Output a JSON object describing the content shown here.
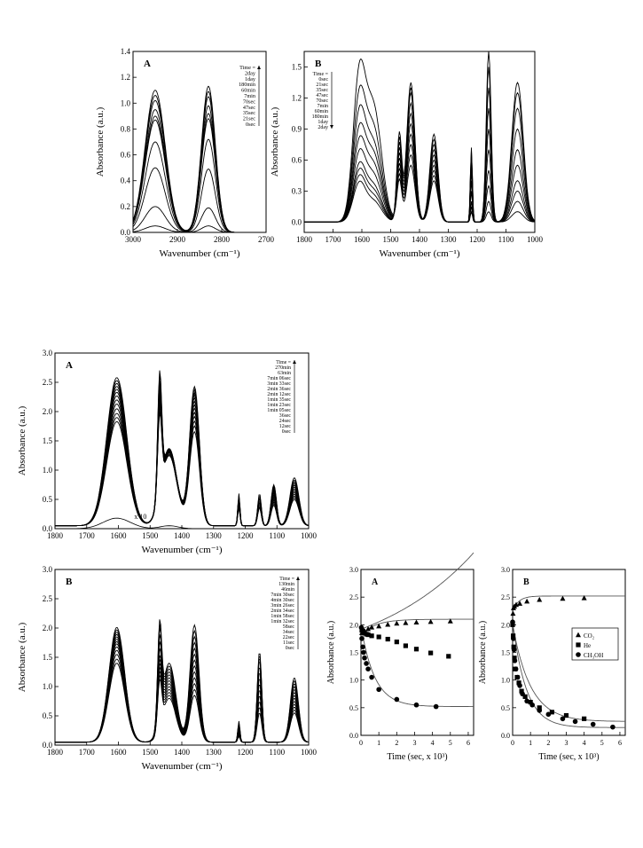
{
  "colors": {
    "ink": "#000000",
    "background": "#ffffff",
    "fit_line": "#555555"
  },
  "chart_data": [
    {
      "id": "fig1A",
      "type": "line",
      "panel_label": "A",
      "xlabel": "Wavenumber (cm⁻¹)",
      "ylabel": "Absorbance (a.u.)",
      "xlim": [
        3000,
        2700
      ],
      "xticks": [
        "3000",
        "2900",
        "2800",
        "2700"
      ],
      "ylim": [
        0.0,
        1.4
      ],
      "yticks": [
        "0.0",
        "0.2",
        "0.4",
        "0.6",
        "0.8",
        "1.0",
        "1.2",
        "1.4"
      ],
      "legend_title": "Time =",
      "legend_entries": [
        "2day",
        "1day",
        "180min",
        "60min",
        "7min",
        "70sec",
        "47sec",
        "35sec",
        "21sec",
        "0sec"
      ],
      "legend_arrow": "up",
      "legend_position": "top-right",
      "peaks": [
        {
          "x": 2950,
          "w": 32,
          "heights": [
            0.05,
            0.2,
            0.5,
            0.7,
            0.87,
            0.9,
            0.95,
            1.02,
            1.06,
            1.1
          ]
        },
        {
          "x": 2830,
          "w": 22,
          "heights": [
            0.05,
            0.19,
            0.49,
            0.72,
            0.88,
            0.92,
            0.98,
            1.05,
            1.09,
            1.13
          ]
        }
      ],
      "baseline": 0.0
    },
    {
      "id": "fig1B",
      "type": "line",
      "panel_label": "B",
      "xlabel": "Wavenumber (cm⁻¹)",
      "ylabel": "Absorbance (a.u.)",
      "xlim": [
        1800,
        1000
      ],
      "xticks": [
        "1800",
        "1700",
        "1600",
        "1500",
        "1400",
        "1300",
        "1200",
        "1100",
        "1000"
      ],
      "ylim": [
        -0.1,
        1.65
      ],
      "yticks": [
        "0.0",
        "0.3",
        "0.6",
        "0.9",
        "1.2",
        "1.5"
      ],
      "legend_title": "Time =",
      "legend_entries": [
        "0sec",
        "21sec",
        "35sec",
        "47sec",
        "70sec",
        "7min",
        "60min",
        "180min",
        "1day",
        "2day"
      ],
      "legend_arrow": "down",
      "legend_position": "top-left",
      "peaks": [
        {
          "x": 1610,
          "w": 30,
          "heights": [
            1.3,
            1.1,
            0.95,
            0.8,
            0.7,
            0.6,
            0.5,
            0.45,
            0.4,
            0.35
          ]
        },
        {
          "x": 1560,
          "w": 40,
          "heights": [
            1.1,
            0.9,
            0.75,
            0.65,
            0.55,
            0.45,
            0.35,
            0.3,
            0.25,
            0.2
          ]
        },
        {
          "x": 1470,
          "w": 12,
          "heights": [
            0.4,
            0.45,
            0.5,
            0.55,
            0.6,
            0.65,
            0.7,
            0.75,
            0.8,
            0.85
          ]
        },
        {
          "x": 1430,
          "w": 20,
          "heights": [
            0.55,
            0.65,
            0.75,
            0.85,
            0.95,
            1.05,
            1.15,
            1.25,
            1.3,
            1.35
          ]
        },
        {
          "x": 1350,
          "w": 20,
          "heights": [
            0.85,
            0.8,
            0.75,
            0.7,
            0.65,
            0.6,
            0.55,
            0.5,
            0.45,
            0.4
          ]
        },
        {
          "x": 1220,
          "w": 5,
          "heights": [
            0.1,
            0.15,
            0.2,
            0.3,
            0.4,
            0.5,
            0.6,
            0.65,
            0.7,
            0.72
          ]
        },
        {
          "x": 1160,
          "w": 12,
          "heights": [
            0.1,
            0.2,
            0.35,
            0.5,
            0.7,
            0.9,
            1.1,
            1.3,
            1.5,
            1.65
          ]
        },
        {
          "x": 1060,
          "w": 28,
          "heights": [
            0.1,
            0.2,
            0.3,
            0.4,
            0.55,
            0.7,
            0.9,
            1.1,
            1.25,
            1.35
          ]
        }
      ],
      "baseline": 0.0
    },
    {
      "id": "fig2A",
      "type": "line",
      "panel_label": "A",
      "xlabel": "Wavenumber (cm⁻¹)",
      "ylabel": "Absorbance (a.u.)",
      "xlim": [
        1800,
        1000
      ],
      "xticks": [
        "1800",
        "1700",
        "1600",
        "1500",
        "1400",
        "1300",
        "1200",
        "1100",
        "1000"
      ],
      "ylim": [
        0.0,
        3.0
      ],
      "yticks": [
        "0.0",
        "0.5",
        "1.0",
        "1.5",
        "2.0",
        "2.5",
        "3.0"
      ],
      "legend_title": "Time =",
      "legend_entries": [
        "270min",
        "63min",
        "7min 06sec",
        "3min 33sec",
        "2min 36sec",
        "2min 12sec",
        "1min 35sec",
        "1min 23sec",
        "1min 05sec",
        "36sec",
        "24sec",
        "12sec",
        "0sec"
      ],
      "legend_arrow": "up",
      "legend_position": "top-right",
      "annotation": "x 10",
      "peaks": [
        {
          "x": 1605,
          "w": 45,
          "heights": [
            1.78,
            1.85,
            1.92,
            2.0,
            2.08,
            2.15,
            2.22,
            2.28,
            2.33,
            2.38,
            2.43,
            2.48,
            2.53
          ]
        },
        {
          "x": 1470,
          "w": 9,
          "heights": [
            1.35,
            1.4,
            1.45,
            1.5,
            1.55,
            1.6,
            1.65,
            1.7,
            1.75,
            1.8,
            1.85,
            1.95,
            2.02
          ]
        },
        {
          "x": 1440,
          "w": 35,
          "heights": [
            1.2,
            1.2,
            1.22,
            1.24,
            1.25,
            1.26,
            1.27,
            1.28,
            1.29,
            1.3,
            1.3,
            1.31,
            1.32
          ]
        },
        {
          "x": 1360,
          "w": 22,
          "heights": [
            1.6,
            1.7,
            1.78,
            1.86,
            1.93,
            2.0,
            2.06,
            2.12,
            2.18,
            2.23,
            2.27,
            2.32,
            2.37
          ]
        },
        {
          "x": 1220,
          "w": 5,
          "heights": [
            0.3,
            0.32,
            0.34,
            0.36,
            0.38,
            0.4,
            0.42,
            0.44,
            0.46,
            0.48,
            0.5,
            0.52,
            0.55
          ]
        },
        {
          "x": 1155,
          "w": 8,
          "heights": [
            0.3,
            0.32,
            0.34,
            0.36,
            0.38,
            0.4,
            0.42,
            0.44,
            0.46,
            0.48,
            0.5,
            0.52,
            0.55
          ]
        },
        {
          "x": 1110,
          "w": 12,
          "heights": [
            0.35,
            0.38,
            0.41,
            0.44,
            0.47,
            0.5,
            0.53,
            0.56,
            0.59,
            0.62,
            0.65,
            0.68,
            0.7
          ]
        },
        {
          "x": 1045,
          "w": 20,
          "heights": [
            0.45,
            0.48,
            0.51,
            0.54,
            0.57,
            0.6,
            0.63,
            0.66,
            0.69,
            0.72,
            0.75,
            0.78,
            0.82
          ]
        }
      ],
      "baseline": 0.05
    },
    {
      "id": "fig2B",
      "type": "line",
      "panel_label": "B",
      "xlabel": "Wavenumber (cm⁻¹)",
      "ylabel": "Absorbance (a.u.)",
      "xlim": [
        1800,
        1000
      ],
      "xticks": [
        "1800",
        "1700",
        "1600",
        "1500",
        "1400",
        "1300",
        "1200",
        "1100",
        "1000"
      ],
      "ylim": [
        0.0,
        3.0
      ],
      "yticks": [
        "0.0",
        "0.5",
        "1.0",
        "1.5",
        "2.0",
        "2.5",
        "3.0"
      ],
      "legend_title": "Time =",
      "legend_entries": [
        "130min",
        "46min",
        "7min 30sec",
        "4min 30sec",
        "3min 26sec",
        "2min 34sec",
        "1min 58sec",
        "1min 32sec",
        "58sec",
        "34sec",
        "22sec",
        "11sec",
        "0sec"
      ],
      "legend_arrow": "up",
      "legend_position": "top-right",
      "peaks": [
        {
          "x": 1605,
          "w": 35,
          "heights": [
            1.35,
            1.42,
            1.5,
            1.57,
            1.63,
            1.68,
            1.72,
            1.76,
            1.8,
            1.84,
            1.88,
            1.92,
            1.96
          ]
        },
        {
          "x": 1470,
          "w": 9,
          "heights": [
            0.8,
            0.85,
            0.9,
            0.95,
            1.0,
            1.05,
            1.1,
            1.2,
            1.3,
            1.4,
            1.5,
            1.55,
            1.6
          ]
        },
        {
          "x": 1440,
          "w": 30,
          "heights": [
            0.75,
            0.8,
            0.85,
            0.9,
            0.95,
            1.0,
            1.05,
            1.1,
            1.15,
            1.2,
            1.25,
            1.3,
            1.35
          ]
        },
        {
          "x": 1360,
          "w": 20,
          "heights": [
            0.8,
            0.9,
            1.0,
            1.1,
            1.2,
            1.3,
            1.4,
            1.5,
            1.6,
            1.7,
            1.8,
            1.9,
            2.0
          ]
        },
        {
          "x": 1220,
          "w": 5,
          "heights": [
            0.1,
            0.12,
            0.14,
            0.16,
            0.18,
            0.2,
            0.22,
            0.24,
            0.26,
            0.28,
            0.3,
            0.33,
            0.36
          ]
        },
        {
          "x": 1155,
          "w": 10,
          "heights": [
            0.5,
            0.6,
            0.7,
            0.8,
            0.9,
            1.0,
            1.1,
            1.2,
            1.3,
            1.4,
            1.45,
            1.5,
            1.55
          ]
        },
        {
          "x": 1045,
          "w": 18,
          "heights": [
            0.5,
            0.55,
            0.6,
            0.65,
            0.7,
            0.75,
            0.8,
            0.85,
            0.9,
            0.95,
            1.0,
            1.05,
            1.1
          ]
        }
      ],
      "baseline": 0.05
    },
    {
      "id": "fig3A",
      "type": "scatter",
      "panel_label": "A",
      "xlabel": "Time (sec, x 10³)",
      "ylabel": "Absorbance (a.u.)",
      "xlim": [
        0,
        6.3
      ],
      "xticks": [
        "0",
        "1",
        "2",
        "3",
        "4",
        "5",
        "6"
      ],
      "ylim": [
        0.0,
        3.0
      ],
      "yticks": [
        "0.0",
        "0.5",
        "1.0",
        "1.5",
        "2.0",
        "2.5",
        "3.0"
      ],
      "series": [
        {
          "name": "CO₂",
          "marker": "triangle",
          "x": [
            0.05,
            0.2,
            0.4,
            0.6,
            1.0,
            1.5,
            2.0,
            2.5,
            3.1,
            3.9,
            5.0
          ],
          "y": [
            1.85,
            1.88,
            1.92,
            1.95,
            1.97,
            2.0,
            2.02,
            2.03,
            2.04,
            2.05,
            2.06
          ]
        },
        {
          "name": "He",
          "marker": "square",
          "x": [
            0.05,
            0.12,
            0.2,
            0.3,
            0.4,
            0.6,
            1.0,
            1.5,
            2.0,
            2.5,
            3.1,
            3.9,
            4.9
          ],
          "y": [
            1.9,
            1.88,
            1.85,
            1.83,
            1.82,
            1.8,
            1.78,
            1.74,
            1.69,
            1.62,
            1.56,
            1.49,
            1.43
          ]
        },
        {
          "name": "CH₃OH",
          "marker": "circle",
          "x": [
            0.02,
            0.05,
            0.1,
            0.15,
            0.2,
            0.3,
            0.4,
            0.6,
            1.0,
            2.0,
            3.1,
            4.2
          ],
          "y": [
            1.95,
            1.75,
            1.6,
            1.5,
            1.4,
            1.3,
            1.2,
            1.05,
            0.83,
            0.65,
            0.55,
            0.52
          ]
        }
      ],
      "fits": [
        {
          "marker": "triangle",
          "a": 2.1,
          "b": -0.28,
          "k": 1.2
        },
        {
          "marker": "square",
          "a": 1.2,
          "b": 0.72,
          "k": -0.17
        },
        {
          "marker": "circle",
          "a": 0.52,
          "b": 1.46,
          "k": 1.3
        }
      ]
    },
    {
      "id": "fig3B",
      "type": "scatter",
      "panel_label": "B",
      "xlabel": "Time (sec, x 10³)",
      "ylabel": "Absorbance (a.u.)",
      "xlim": [
        0,
        6.3
      ],
      "xticks": [
        "0",
        "1",
        "2",
        "3",
        "4",
        "5",
        "6"
      ],
      "ylim": [
        0.0,
        3.0
      ],
      "yticks": [
        "0.0",
        "0.5",
        "1.0",
        "1.5",
        "2.0",
        "2.5",
        "3.0"
      ],
      "legend_position": "center-right",
      "series": [
        {
          "name": "CO₂",
          "marker": "triangle",
          "x": [
            0.02,
            0.05,
            0.1,
            0.2,
            0.4,
            0.8,
            1.5,
            2.8,
            4.0
          ],
          "y": [
            2.2,
            2.3,
            2.33,
            2.36,
            2.38,
            2.42,
            2.45,
            2.47,
            2.48
          ]
        },
        {
          "name": "He",
          "marker": "square",
          "x": [
            0.0,
            0.03,
            0.06,
            0.1,
            0.15,
            0.25,
            0.35,
            0.5,
            0.7,
            1.0,
            1.5,
            2.2,
            3.0,
            4.0
          ],
          "y": [
            2.0,
            1.8,
            1.6,
            1.4,
            1.2,
            1.05,
            0.95,
            0.8,
            0.7,
            0.6,
            0.5,
            0.42,
            0.36,
            0.3
          ]
        },
        {
          "name": "CH₃OH",
          "marker": "circle",
          "x": [
            0.0,
            0.04,
            0.08,
            0.12,
            0.18,
            0.28,
            0.4,
            0.55,
            0.8,
            1.1,
            1.5,
            2.0,
            2.8,
            3.5,
            4.5,
            5.6
          ],
          "y": [
            2.05,
            1.75,
            1.55,
            1.35,
            1.2,
            1.05,
            0.9,
            0.75,
            0.62,
            0.55,
            0.45,
            0.38,
            0.3,
            0.25,
            0.2,
            0.15
          ]
        }
      ],
      "fits": [
        {
          "marker": "triangle",
          "a": 2.52,
          "b": -0.28,
          "k": 3.0
        },
        {
          "marker": "square",
          "a": 0.25,
          "b": 1.75,
          "k": 1.0
        },
        {
          "marker": "circle",
          "a": 0.14,
          "b": 1.9,
          "k": 1.3
        }
      ]
    }
  ]
}
